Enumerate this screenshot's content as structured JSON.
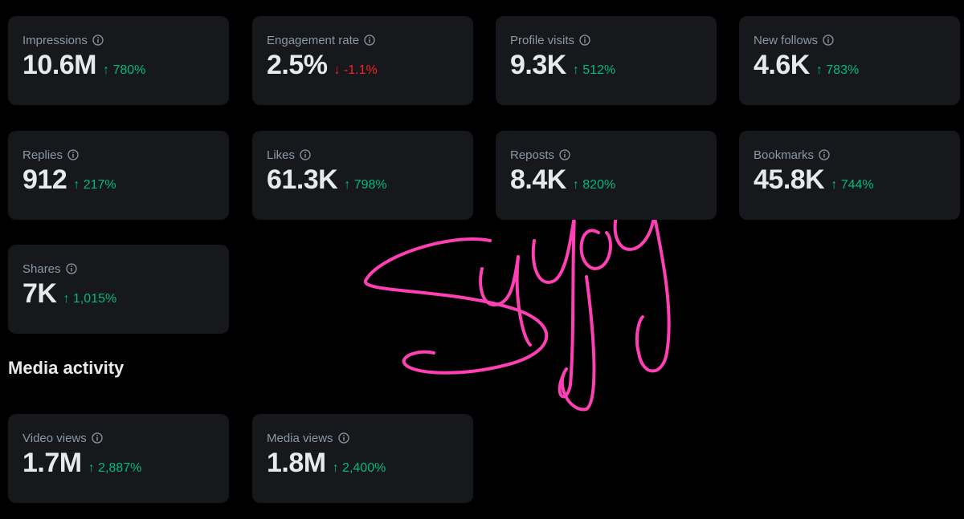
{
  "metrics": [
    {
      "label": "Impressions",
      "value": "10.6M",
      "change": "780%",
      "trend": "up"
    },
    {
      "label": "Engagement rate",
      "value": "2.5%",
      "change": "-1.1%",
      "trend": "down"
    },
    {
      "label": "Profile visits",
      "value": "9.3K",
      "change": "512%",
      "trend": "up"
    },
    {
      "label": "New follows",
      "value": "4.6K",
      "change": "783%",
      "trend": "up"
    },
    {
      "label": "Replies",
      "value": "912",
      "change": "217%",
      "trend": "up"
    },
    {
      "label": "Likes",
      "value": "61.3K",
      "change": "798%",
      "trend": "up"
    },
    {
      "label": "Reposts",
      "value": "8.4K",
      "change": "820%",
      "trend": "up"
    },
    {
      "label": "Bookmarks",
      "value": "45.8K",
      "change": "744%",
      "trend": "up"
    },
    {
      "label": "Shares",
      "value": "7K",
      "change": "1,015%",
      "trend": "up"
    }
  ],
  "media": {
    "title": "Media activity",
    "metrics": [
      {
        "label": "Video views",
        "value": "1.7M",
        "change": "2,887%",
        "trend": "up"
      },
      {
        "label": "Media views",
        "value": "1.8M",
        "change": "2,400%",
        "trend": "up"
      }
    ]
  }
}
